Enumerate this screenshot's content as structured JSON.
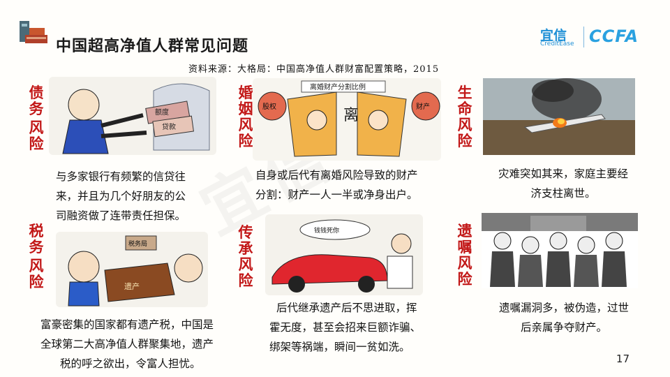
{
  "title": "中国超高净值人群常见问题",
  "source": "资料来源：大格局：中国高净值人群财富配置策略，2015",
  "brand": {
    "yixin": "宜信",
    "yixin_sub": "CreditEase",
    "ccfa": "CCFA"
  },
  "watermark": "宜信",
  "page_number": "17",
  "panels": [
    {
      "category": [
        "债",
        "务",
        "风",
        "险"
      ],
      "desc": [
        "与多家银行有频繁的信贷往",
        "来，并且为几个好朋友的公",
        "司融资做了连带责任担保。"
      ],
      "img_tags": [
        "额度",
        "贷款"
      ]
    },
    {
      "category": [
        "婚",
        "姻",
        "风",
        "险"
      ],
      "desc": [
        "自身或后代有离婚风险导致的财产",
        "分割：财产一人一半或净身出户。"
      ],
      "img_tags": [
        "离婚财产分割比例",
        "股权",
        "财产",
        "离"
      ]
    },
    {
      "category": [
        "生",
        "命",
        "风",
        "险"
      ],
      "desc": [
        "灾难突如其来，家庭主要经",
        "济支柱离世。"
      ],
      "img_tags": []
    },
    {
      "category": [
        "税",
        "务",
        "风",
        "险"
      ],
      "desc": [
        "富豪密集的国家都有遗产税，中国是",
        "全球第二大高净值人群聚集地，遗产",
        "税的呼之欲出，令富人担忧。"
      ],
      "img_tags": [
        "税务局",
        "遗产"
      ]
    },
    {
      "category": [
        "传",
        "承",
        "风",
        "险"
      ],
      "desc": [
        "后代继承遗产后不思进取，挥",
        "霍无度，甚至会招来巨额诈骗、",
        "绑架等祸端，瞬间一贫如洗。"
      ],
      "img_tags": [
        "钱钱死你"
      ]
    },
    {
      "category": [
        "遗",
        "嘱",
        "风",
        "险"
      ],
      "desc": [
        "遗嘱漏洞多，被伪造，过世",
        "后亲属争夺财产。"
      ],
      "img_tags": []
    }
  ]
}
